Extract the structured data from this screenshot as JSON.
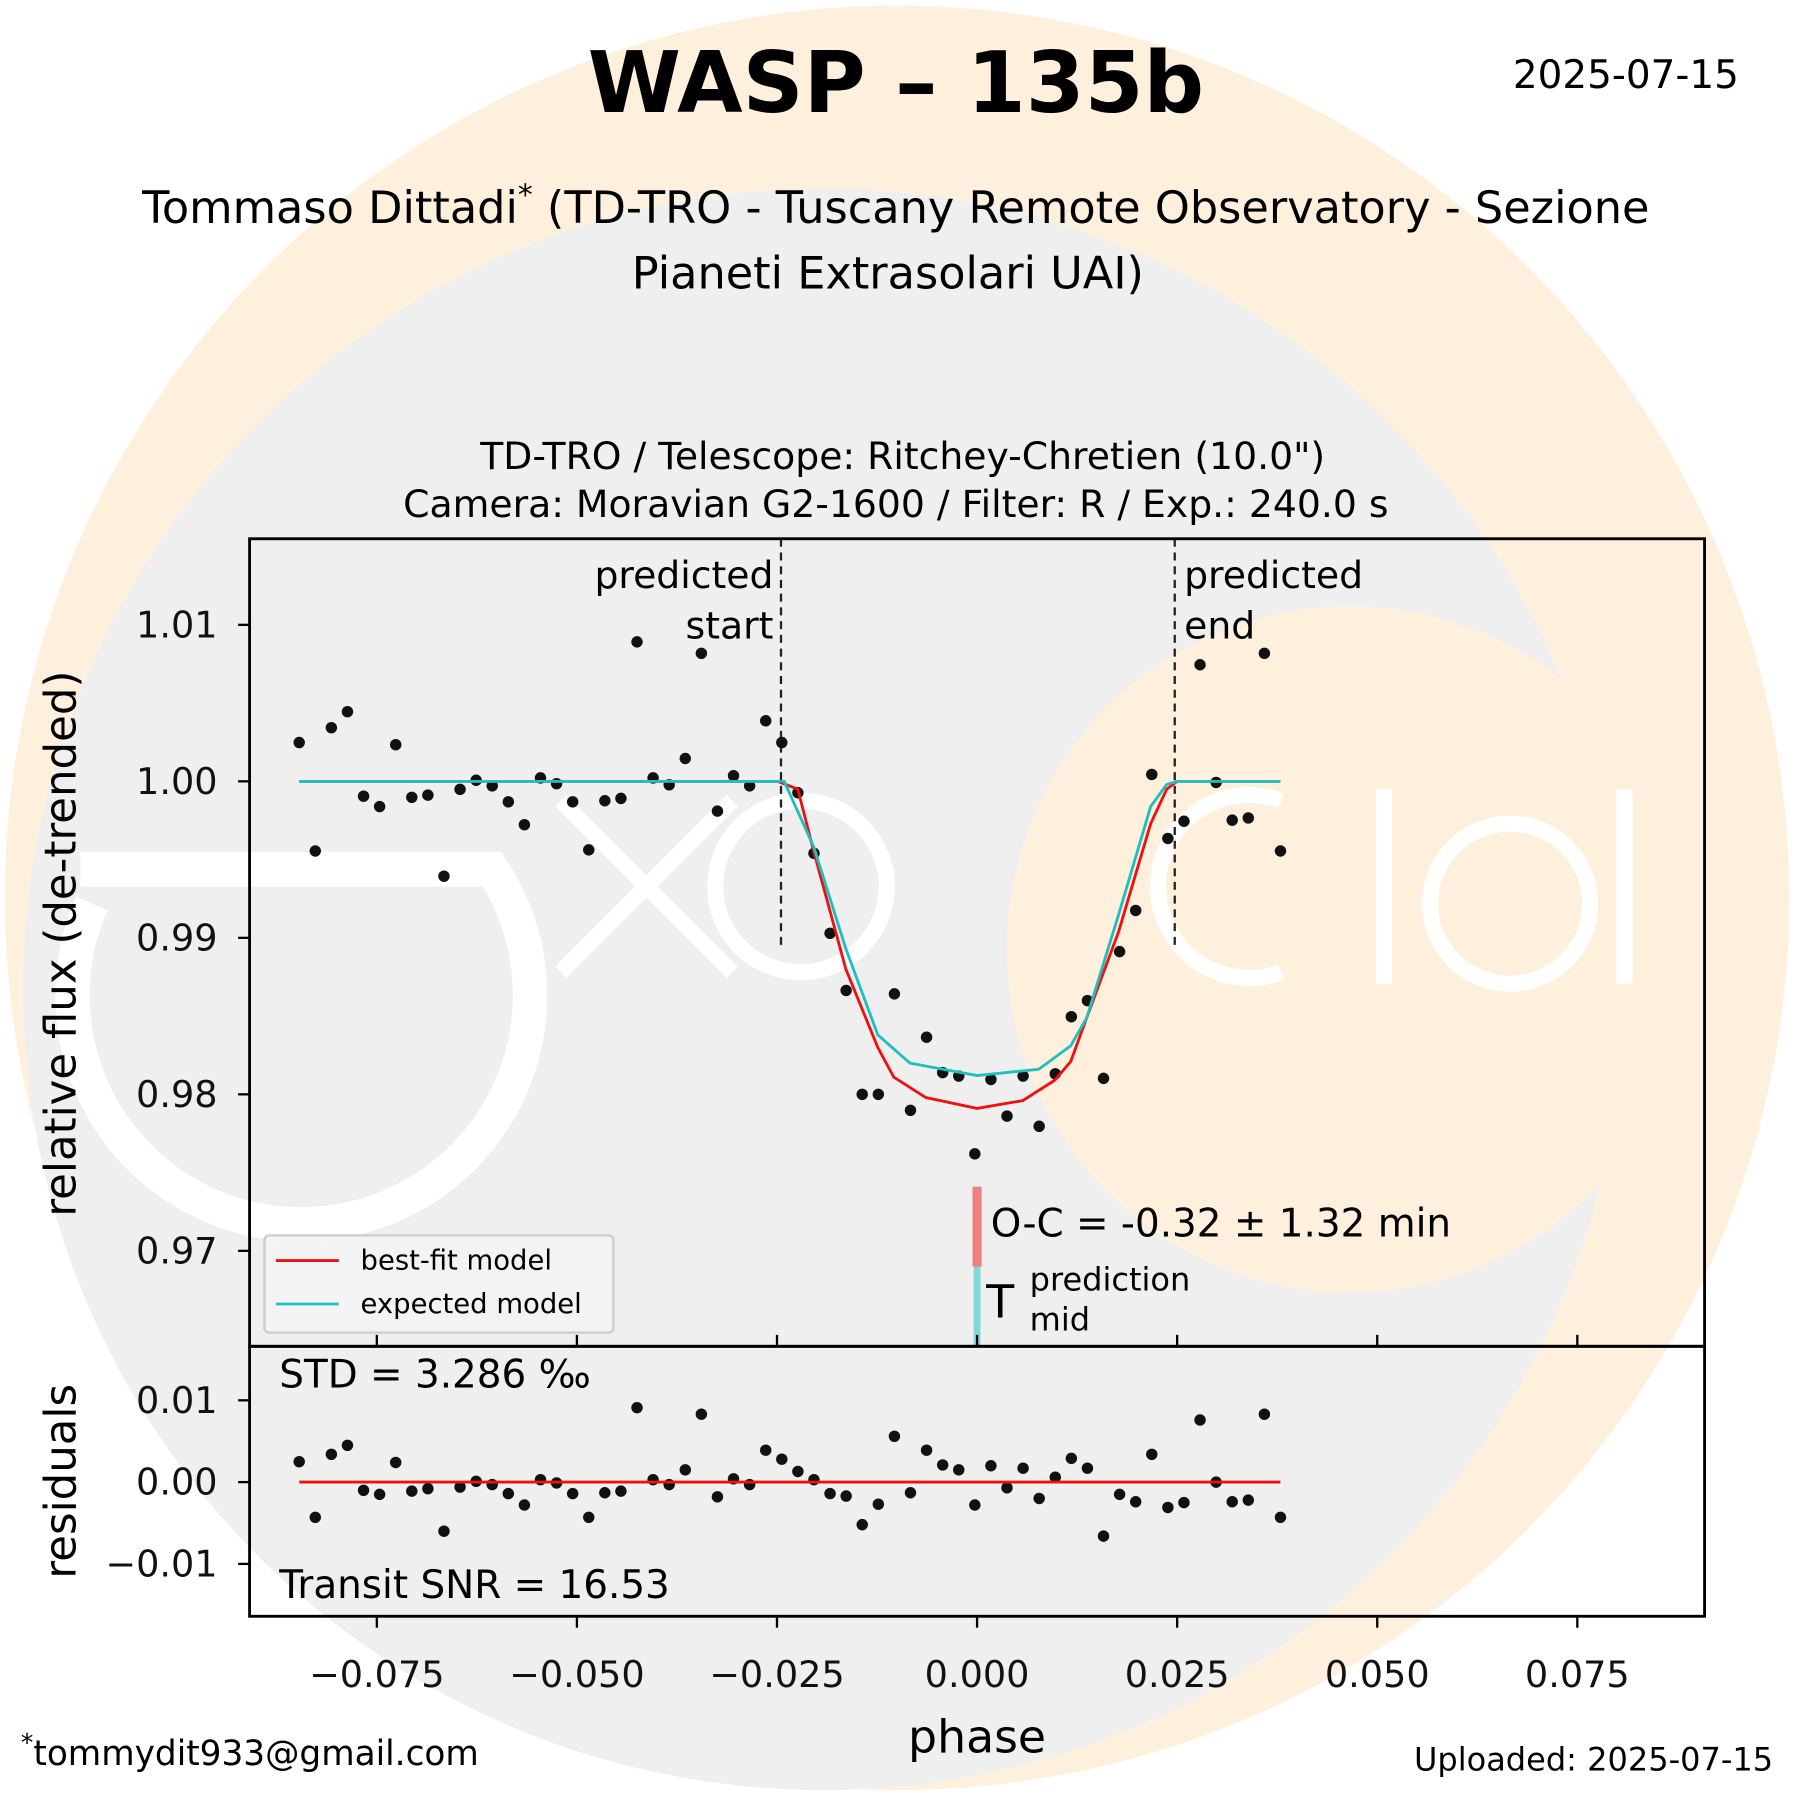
{
  "header": {
    "title": "WASP – 135b",
    "date": "2025-07-15",
    "observer_name": "Tommaso Dittadi",
    "observer_mark": "*",
    "observer_line1_rest": " (TD-TRO - Tuscany Remote Observatory - Sezione",
    "observer_line2": "Pianeti Extrasolari UAI)"
  },
  "footer": {
    "email_mark": "*",
    "email": "tommydit933@gmail.com",
    "uploaded": "Uploaded: 2025-07-15"
  },
  "colors": {
    "best_fit": "#ee1111",
    "expected": "#1fbfbf",
    "points": "#111111",
    "oc_bar": "#f08080",
    "mid_bar": "#80d8d8",
    "watermark_orange": "#fef0dc",
    "watermark_gray": "#efefef"
  },
  "chart_data": {
    "type": "scatter",
    "title_line1": "TD-TRO / Telescope: Ritchey-Chretien (10.0\")",
    "title_line2": "Camera: Moravian G2-1600 / Filter: R / Exp.: 240.0 s",
    "xlabel": "phase",
    "ylabel": "relative flux (de-trended)",
    "residual_ylabel": "residuals",
    "xlim": [
      -0.0909,
      0.0909
    ],
    "ylim": [
      0.9639,
      1.0155
    ],
    "residual_ylim": [
      -0.0164,
      0.0166
    ],
    "xticks": [
      -0.075,
      -0.05,
      -0.025,
      0.0,
      0.025,
      0.05,
      0.075
    ],
    "xtick_labels": [
      "−0.075",
      "−0.050",
      "−0.025",
      "0.000",
      "0.025",
      "0.050",
      "0.075"
    ],
    "yticks": [
      1.01,
      1.0,
      0.99,
      0.98,
      0.97
    ],
    "ytick_labels": [
      "1.01",
      "1.00",
      "0.99",
      "0.98",
      "0.97"
    ],
    "residual_yticks": [
      0.01,
      0.0,
      -0.01
    ],
    "residual_ytick_labels": [
      "0.01",
      "0.00",
      "−0.01"
    ],
    "phase_start": -0.0847,
    "phase_step": 0.00201,
    "flux": [
      1.00248,
      0.99555,
      1.00343,
      1.00445,
      0.99905,
      0.99839,
      1.00234,
      0.99898,
      0.99912,
      0.99394,
      0.99949,
      1.00007,
      0.99971,
      0.99869,
      0.99723,
      1.00022,
      0.99985,
      0.99869,
      0.99562,
      0.99876,
      0.99891,
      1.00891,
      1.00022,
      0.99978,
      1.00146,
      1.00818,
      0.9981,
      1.00036,
      0.99971,
      1.00387,
      1.00248,
      0.99927,
      0.9954,
      0.99029,
      0.98664,
      0.98,
      0.98,
      0.98642,
      0.97898,
      0.98365,
      0.98139,
      0.98117,
      0.9762,
      0.98095,
      0.97861,
      0.98117,
      0.97796,
      0.98131,
      0.98496,
      0.98599,
      0.98102,
      0.98912,
      0.99175,
      1.00044,
      0.99635,
      0.99745,
      1.00745,
      0.99993,
      0.99752,
      0.99766,
      1.00818,
      0.99555
    ],
    "residuals": [
      0.0025,
      -0.0043,
      0.0034,
      0.0045,
      -0.001,
      -0.0015,
      0.0024,
      -0.0011,
      -0.0008,
      -0.006,
      -0.0006,
      0.0001,
      -0.0003,
      -0.0014,
      -0.0028,
      0.0003,
      -0.0001,
      -0.0014,
      -0.0043,
      -0.0013,
      -0.0011,
      0.0091,
      0.0003,
      -0.0003,
      0.0015,
      0.0083,
      -0.0018,
      0.0004,
      -0.0003,
      0.0039,
      0.0028,
      0.0013,
      0.0003,
      -0.0014,
      -0.0017,
      -0.0052,
      -0.0027,
      0.0056,
      -0.0013,
      0.0039,
      0.0021,
      0.0015,
      -0.0028,
      0.002,
      -0.0007,
      0.0017,
      -0.002,
      0.0006,
      0.0029,
      0.0017,
      -0.0066,
      -0.0015,
      -0.0024,
      0.0034,
      -0.0031,
      -0.0025,
      0.0076,
      0.0,
      -0.0024,
      -0.0022,
      0.0083,
      -0.0043
    ],
    "series": [
      {
        "name": "best-fit model",
        "phase": [
          -0.0847,
          -0.0249,
          -0.0224,
          -0.0204,
          -0.0164,
          -0.0124,
          -0.0104,
          -0.0064,
          0.0,
          0.0057,
          0.0097,
          0.0117,
          0.0137,
          0.0177,
          0.0217,
          0.0237,
          0.025,
          0.0379
        ],
        "flux": [
          1.0,
          1.0,
          0.9995,
          0.9955,
          0.988,
          0.983,
          0.9811,
          0.9798,
          0.9791,
          0.9796,
          0.9809,
          0.9821,
          0.9849,
          0.9904,
          0.9973,
          0.9995,
          1.0,
          1.0
        ]
      },
      {
        "name": "expected model",
        "phase": [
          -0.0847,
          -0.0241,
          -0.0204,
          -0.0164,
          -0.0124,
          -0.0084,
          0.0,
          0.0077,
          0.0117,
          0.0137,
          0.0177,
          0.0217,
          0.0237,
          0.025,
          0.0379
        ],
        "flux": [
          1.0,
          1.0,
          0.9958,
          0.9893,
          0.9838,
          0.982,
          0.9812,
          0.9816,
          0.9831,
          0.9849,
          0.9915,
          0.9984,
          0.9998,
          1.0,
          1.0
        ]
      }
    ],
    "residual_line": 0.0,
    "predicted_start": -0.0245,
    "predicted_end": 0.0247,
    "annotations": {
      "start_line1": "predicted",
      "start_line2": "start",
      "end_line1": "predicted",
      "end_line2": "end",
      "oc": "O-C = -0.32 ± 1.32 min",
      "tmid_T": "T",
      "tmid_sup": "prediction",
      "tmid_sub": "mid",
      "std": "STD = 3.286 ‰",
      "snr": "Transit SNR = 16.53"
    },
    "oc_bar_flux": [
      0.9741,
      0.969
    ],
    "legend": {
      "placement": "lower-left",
      "entries": [
        "best-fit model",
        "expected model"
      ]
    }
  }
}
